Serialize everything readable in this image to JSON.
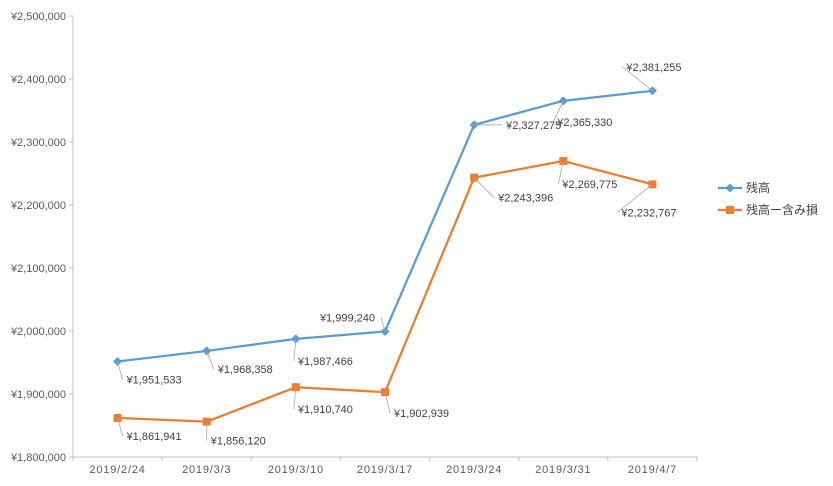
{
  "chart_data": {
    "type": "line",
    "categories": [
      "2019/2/24",
      "2019/3/3",
      "2019/3/10",
      "2019/3/17",
      "2019/3/24",
      "2019/3/31",
      "2019/4/7"
    ],
    "series": [
      {
        "name": "残高",
        "color": "#5b9bd5",
        "marker": "diamond",
        "values": [
          1951533,
          1968358,
          1987466,
          1999240,
          2327275,
          2365330,
          2381255
        ],
        "labels": [
          "¥1,951,533",
          "¥1,968,358",
          "¥1,987,466",
          "¥1,999,240",
          "¥2,327,275",
          "¥2,365,330",
          "¥2,381,255"
        ]
      },
      {
        "name": "残高ー含み損",
        "color": "#ed7d31",
        "marker": "square",
        "values": [
          1861941,
          1856120,
          1910740,
          1902939,
          2243396,
          2269775,
          2232767
        ],
        "labels": [
          "¥1,861,941",
          "¥1,856,120",
          "¥1,910,740",
          "¥1,902,939",
          "¥2,243,396",
          "¥2,269,775",
          "¥2,232,767"
        ]
      }
    ],
    "ylim": [
      1800000,
      2500000
    ],
    "ytick_labels": [
      "¥1,800,000",
      "¥1,900,000",
      "¥2,000,000",
      "¥2,100,000",
      "¥2,200,000",
      "¥2,300,000",
      "¥2,400,000",
      "¥2,500,000"
    ],
    "title": "",
    "xlabel": "",
    "ylabel": "",
    "grid": false,
    "legend_position": "right"
  }
}
